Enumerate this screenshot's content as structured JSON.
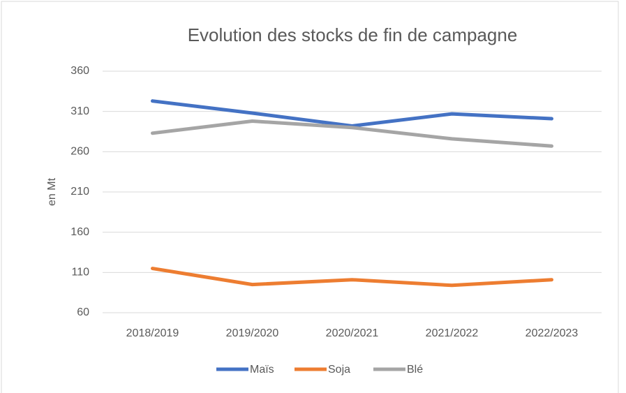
{
  "chart_data": {
    "type": "line",
    "title": "Evolution des stocks de fin de campagne",
    "y_label": "en Mt",
    "categories": [
      "2018/2019",
      "2019/2020",
      "2020/2021",
      "2021/2022",
      "2022/2023"
    ],
    "series": [
      {
        "name": "Maïs",
        "color": "#4472c4",
        "values": [
          323,
          308,
          292,
          307,
          301
        ]
      },
      {
        "name": "Soja",
        "color": "#ed7d31",
        "values": [
          115,
          95,
          101,
          94,
          101
        ]
      },
      {
        "name": "Blé",
        "color": "#a5a5a5",
        "values": [
          283,
          298,
          290,
          276,
          267
        ]
      }
    ],
    "ylim": [
      60,
      360
    ],
    "yticks": [
      60,
      110,
      160,
      210,
      260,
      310,
      360
    ],
    "grid": true,
    "legend": "bottom"
  }
}
